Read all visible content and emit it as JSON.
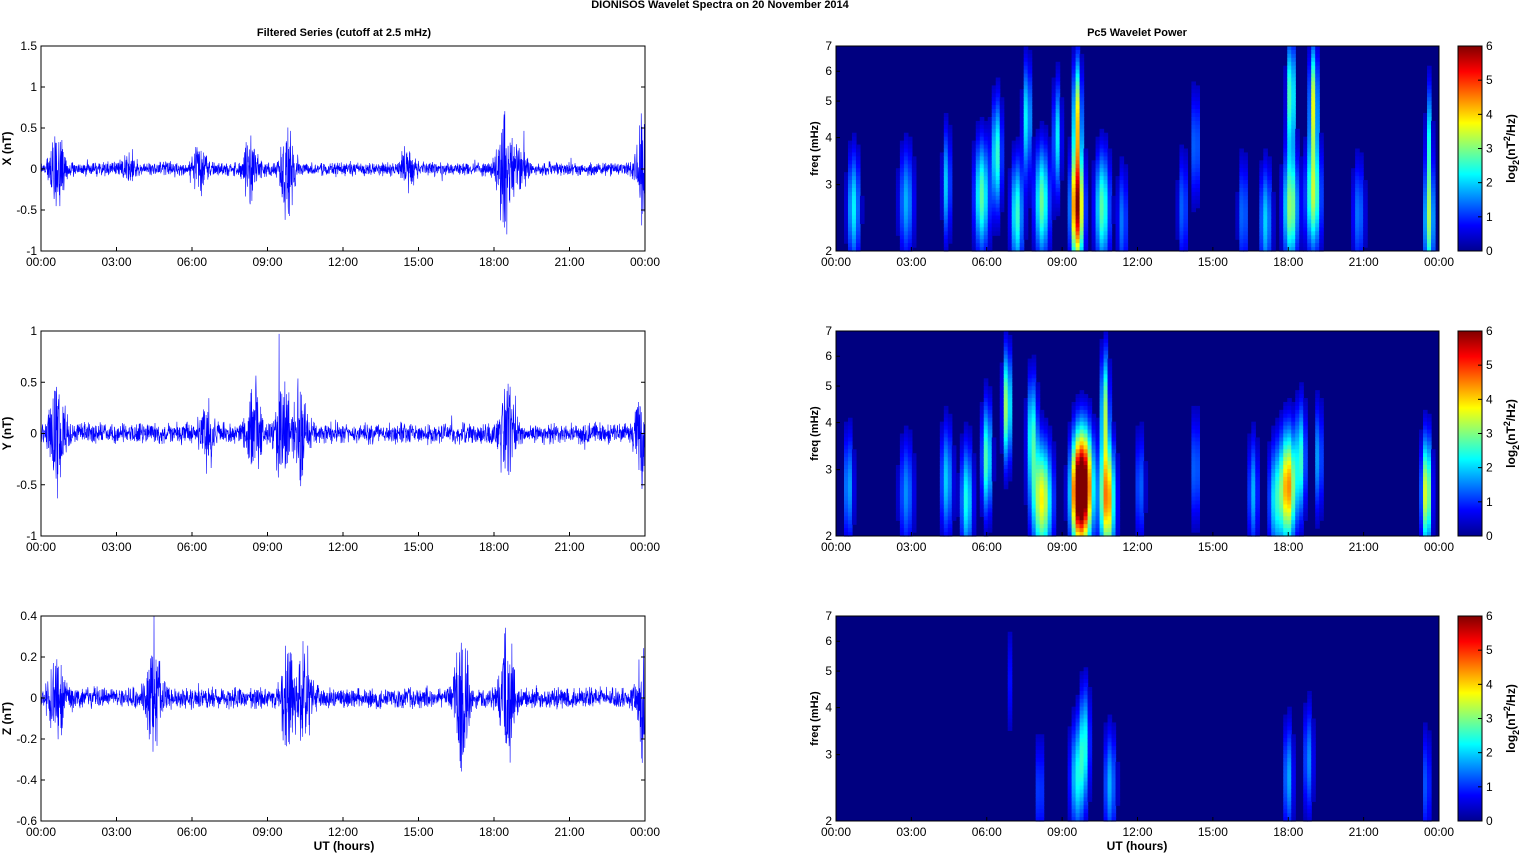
{
  "title": "DIONISOS Wavelet Spectra on 20 November  2014",
  "left_title": "Filtered Series (cutoff at 2.5 mHz)",
  "right_title": "Pc5 Wavelet Power",
  "xlabel": "UT (hours)",
  "time_ticks": [
    "00:00",
    "03:00",
    "06:00",
    "09:00",
    "12:00",
    "15:00",
    "18:00",
    "21:00",
    "00:00"
  ],
  "colors": {
    "series": "#0000ff",
    "background_low": "#00008f",
    "colormap": "jet"
  },
  "chart_data": [
    {
      "type": "line",
      "panel": "X",
      "ylabel": "X (nT)",
      "ylim": [
        -1,
        1.5
      ],
      "y_ticks": [
        -1,
        -0.5,
        0,
        0.5,
        1,
        1.5
      ],
      "y_tick_labels": [
        "-1",
        "-0.5",
        "0",
        "0.5",
        "1",
        "1.5"
      ],
      "x_range_hours": [
        0,
        24
      ],
      "baseline_amplitude": 0.1,
      "bursts": [
        {
          "t": 0.65,
          "amp": 0.5
        },
        {
          "t": 3.5,
          "amp": 0.15
        },
        {
          "t": 6.3,
          "amp": 0.3
        },
        {
          "t": 8.3,
          "amp": 0.4
        },
        {
          "t": 9.8,
          "amp": 0.75
        },
        {
          "t": 14.6,
          "amp": 0.3
        },
        {
          "t": 18.4,
          "amp": 0.9
        },
        {
          "t": 19.0,
          "amp": 0.35
        },
        {
          "t": 23.95,
          "amp": 0.85
        }
      ]
    },
    {
      "type": "line",
      "panel": "Y",
      "ylabel": "Y (nT)",
      "ylim": [
        -1,
        1
      ],
      "y_ticks": [
        -1,
        -0.5,
        0,
        0.5,
        1
      ],
      "y_tick_labels": [
        "-1",
        "-0.5",
        "0",
        "0.5",
        "1"
      ],
      "x_range_hours": [
        0,
        24
      ],
      "baseline_amplitude": 0.12,
      "bursts": [
        {
          "t": 0.65,
          "amp": 0.75
        },
        {
          "t": 6.6,
          "amp": 0.4
        },
        {
          "t": 8.5,
          "amp": 0.5
        },
        {
          "t": 9.6,
          "amp": 0.65
        },
        {
          "t": 10.3,
          "amp": 0.55
        },
        {
          "t": 18.5,
          "amp": 0.6
        },
        {
          "t": 23.9,
          "amp": 0.55
        }
      ]
    },
    {
      "type": "line",
      "panel": "Z",
      "ylabel": "Z (nT)",
      "ylim": [
        -0.6,
        0.4
      ],
      "y_ticks": [
        -0.6,
        -0.4,
        -0.2,
        0,
        0.2,
        0.4
      ],
      "y_tick_labels": [
        "-0.6",
        "-0.4",
        "-0.2",
        "0",
        "0.2",
        "0.4"
      ],
      "x_range_hours": [
        0,
        24
      ],
      "baseline_amplitude": 0.06,
      "bursts": [
        {
          "t": 0.6,
          "amp": 0.22
        },
        {
          "t": 4.5,
          "amp": 0.35
        },
        {
          "t": 9.8,
          "amp": 0.3
        },
        {
          "t": 10.5,
          "amp": 0.28
        },
        {
          "t": 16.7,
          "amp": 0.4
        },
        {
          "t": 18.5,
          "amp": 0.4
        },
        {
          "t": 24.0,
          "amp": 0.35
        }
      ]
    },
    {
      "type": "heatmap",
      "panel": "X",
      "ylabel": "freq (mHz)",
      "yscale": "log",
      "ylim": [
        2,
        7
      ],
      "y_ticks": [
        2,
        3,
        4,
        5,
        6,
        7
      ],
      "y_tick_labels": [
        "2",
        "3",
        "4",
        "5",
        "6",
        "7"
      ],
      "x_range_hours": [
        0,
        24
      ],
      "colorbar_label": "log2(nT^2/Hz)",
      "clim": [
        0,
        6
      ],
      "colorbar_ticks": [
        "0",
        "1",
        "2",
        "3",
        "4",
        "5",
        "6"
      ],
      "blobs": [
        {
          "t": 0.7,
          "f": 2.6,
          "p": 2.2,
          "w": 0.25
        },
        {
          "t": 2.8,
          "f": 2.7,
          "p": 1.8,
          "w": 0.3
        },
        {
          "t": 4.4,
          "f": 3.0,
          "p": 2.0,
          "w": 0.2
        },
        {
          "t": 5.8,
          "f": 2.8,
          "p": 2.8,
          "w": 0.3
        },
        {
          "t": 6.4,
          "f": 3.6,
          "p": 2.6,
          "w": 0.25
        },
        {
          "t": 7.2,
          "f": 2.5,
          "p": 2.6,
          "w": 0.25
        },
        {
          "t": 7.6,
          "f": 4.5,
          "p": 2.4,
          "w": 0.2
        },
        {
          "t": 8.2,
          "f": 2.7,
          "p": 2.9,
          "w": 0.3
        },
        {
          "t": 8.8,
          "f": 4.0,
          "p": 2.2,
          "w": 0.2
        },
        {
          "t": 9.6,
          "f": 2.6,
          "p": 5.8,
          "w": 0.25
        },
        {
          "t": 9.6,
          "f": 4.6,
          "p": 3.6,
          "w": 0.2
        },
        {
          "t": 10.6,
          "f": 2.6,
          "p": 2.8,
          "w": 0.3
        },
        {
          "t": 11.4,
          "f": 2.4,
          "p": 1.5,
          "w": 0.2
        },
        {
          "t": 13.8,
          "f": 2.6,
          "p": 1.4,
          "w": 0.2
        },
        {
          "t": 14.3,
          "f": 3.8,
          "p": 1.6,
          "w": 0.2
        },
        {
          "t": 16.2,
          "f": 2.5,
          "p": 1.5,
          "w": 0.2
        },
        {
          "t": 17.1,
          "f": 2.4,
          "p": 2.0,
          "w": 0.25
        },
        {
          "t": 18.1,
          "f": 2.6,
          "p": 3.2,
          "w": 0.3
        },
        {
          "t": 18.1,
          "f": 5.2,
          "p": 3.0,
          "w": 0.2
        },
        {
          "t": 19.0,
          "f": 2.8,
          "p": 3.2,
          "w": 0.3
        },
        {
          "t": 19.0,
          "f": 5.0,
          "p": 3.4,
          "w": 0.2
        },
        {
          "t": 20.8,
          "f": 2.5,
          "p": 1.5,
          "w": 0.25
        },
        {
          "t": 23.6,
          "f": 2.4,
          "p": 3.0,
          "w": 0.2
        },
        {
          "t": 23.6,
          "f": 4.0,
          "p": 2.0,
          "w": 0.15
        }
      ]
    },
    {
      "type": "heatmap",
      "panel": "Y",
      "ylabel": "freq (mHz)",
      "yscale": "log",
      "ylim": [
        2,
        7
      ],
      "y_ticks": [
        2,
        3,
        4,
        5,
        6,
        7
      ],
      "y_tick_labels": [
        "2",
        "3",
        "4",
        "5",
        "6",
        "7"
      ],
      "x_range_hours": [
        0,
        24
      ],
      "colorbar_label": "log2(nT^2/Hz)",
      "clim": [
        0,
        6
      ],
      "colorbar_ticks": [
        "0",
        "1",
        "2",
        "3",
        "4",
        "5",
        "6"
      ],
      "blobs": [
        {
          "t": 0.5,
          "f": 2.7,
          "p": 1.8,
          "w": 0.2
        },
        {
          "t": 2.8,
          "f": 2.6,
          "p": 1.6,
          "w": 0.3
        },
        {
          "t": 4.4,
          "f": 2.8,
          "p": 2.0,
          "w": 0.25
        },
        {
          "t": 5.2,
          "f": 2.5,
          "p": 2.4,
          "w": 0.25
        },
        {
          "t": 6.0,
          "f": 3.2,
          "p": 2.8,
          "w": 0.25
        },
        {
          "t": 6.8,
          "f": 4.4,
          "p": 3.4,
          "w": 0.2
        },
        {
          "t": 7.8,
          "f": 3.8,
          "p": 2.4,
          "w": 0.25
        },
        {
          "t": 8.2,
          "f": 2.5,
          "p": 3.8,
          "w": 0.4
        },
        {
          "t": 9.6,
          "f": 2.6,
          "p": 4.2,
          "w": 0.3
        },
        {
          "t": 9.9,
          "f": 2.7,
          "p": 5.6,
          "w": 0.35
        },
        {
          "t": 10.8,
          "f": 2.5,
          "p": 4.6,
          "w": 0.3
        },
        {
          "t": 10.7,
          "f": 4.4,
          "p": 3.0,
          "w": 0.2
        },
        {
          "t": 12.1,
          "f": 2.7,
          "p": 1.4,
          "w": 0.2
        },
        {
          "t": 14.3,
          "f": 3.0,
          "p": 1.6,
          "w": 0.2
        },
        {
          "t": 16.6,
          "f": 2.6,
          "p": 1.8,
          "w": 0.2
        },
        {
          "t": 17.5,
          "f": 2.5,
          "p": 2.2,
          "w": 0.3
        },
        {
          "t": 18.0,
          "f": 2.7,
          "p": 4.4,
          "w": 0.3
        },
        {
          "t": 18.5,
          "f": 3.2,
          "p": 2.4,
          "w": 0.25
        },
        {
          "t": 19.2,
          "f": 3.2,
          "p": 1.8,
          "w": 0.2
        },
        {
          "t": 23.5,
          "f": 2.6,
          "p": 3.8,
          "w": 0.2
        }
      ]
    },
    {
      "type": "heatmap",
      "panel": "Z",
      "ylabel": "freq (mHz)",
      "yscale": "log",
      "ylim": [
        2,
        7
      ],
      "y_ticks": [
        2,
        3,
        4,
        5,
        6,
        7
      ],
      "y_tick_labels": [
        "2",
        "3",
        "4",
        "5",
        "6",
        "7"
      ],
      "x_range_hours": [
        0,
        24
      ],
      "colorbar_label": "log2(nT^2/Hz)",
      "clim": [
        0,
        6
      ],
      "colorbar_ticks": [
        "0",
        "1",
        "2",
        "3",
        "4",
        "5",
        "6"
      ],
      "blobs": [
        {
          "t": 6.9,
          "f": 4.7,
          "p": 0.8,
          "w": 0.15
        },
        {
          "t": 8.1,
          "f": 2.4,
          "p": 1.2,
          "w": 0.2
        },
        {
          "t": 9.6,
          "f": 2.6,
          "p": 2.2,
          "w": 0.3
        },
        {
          "t": 9.9,
          "f": 3.3,
          "p": 2.0,
          "w": 0.25
        },
        {
          "t": 10.9,
          "f": 2.5,
          "p": 1.8,
          "w": 0.25
        },
        {
          "t": 18.0,
          "f": 2.6,
          "p": 1.8,
          "w": 0.2
        },
        {
          "t": 18.8,
          "f": 2.9,
          "p": 1.6,
          "w": 0.2
        },
        {
          "t": 23.5,
          "f": 2.5,
          "p": 1.4,
          "w": 0.15
        }
      ]
    }
  ]
}
